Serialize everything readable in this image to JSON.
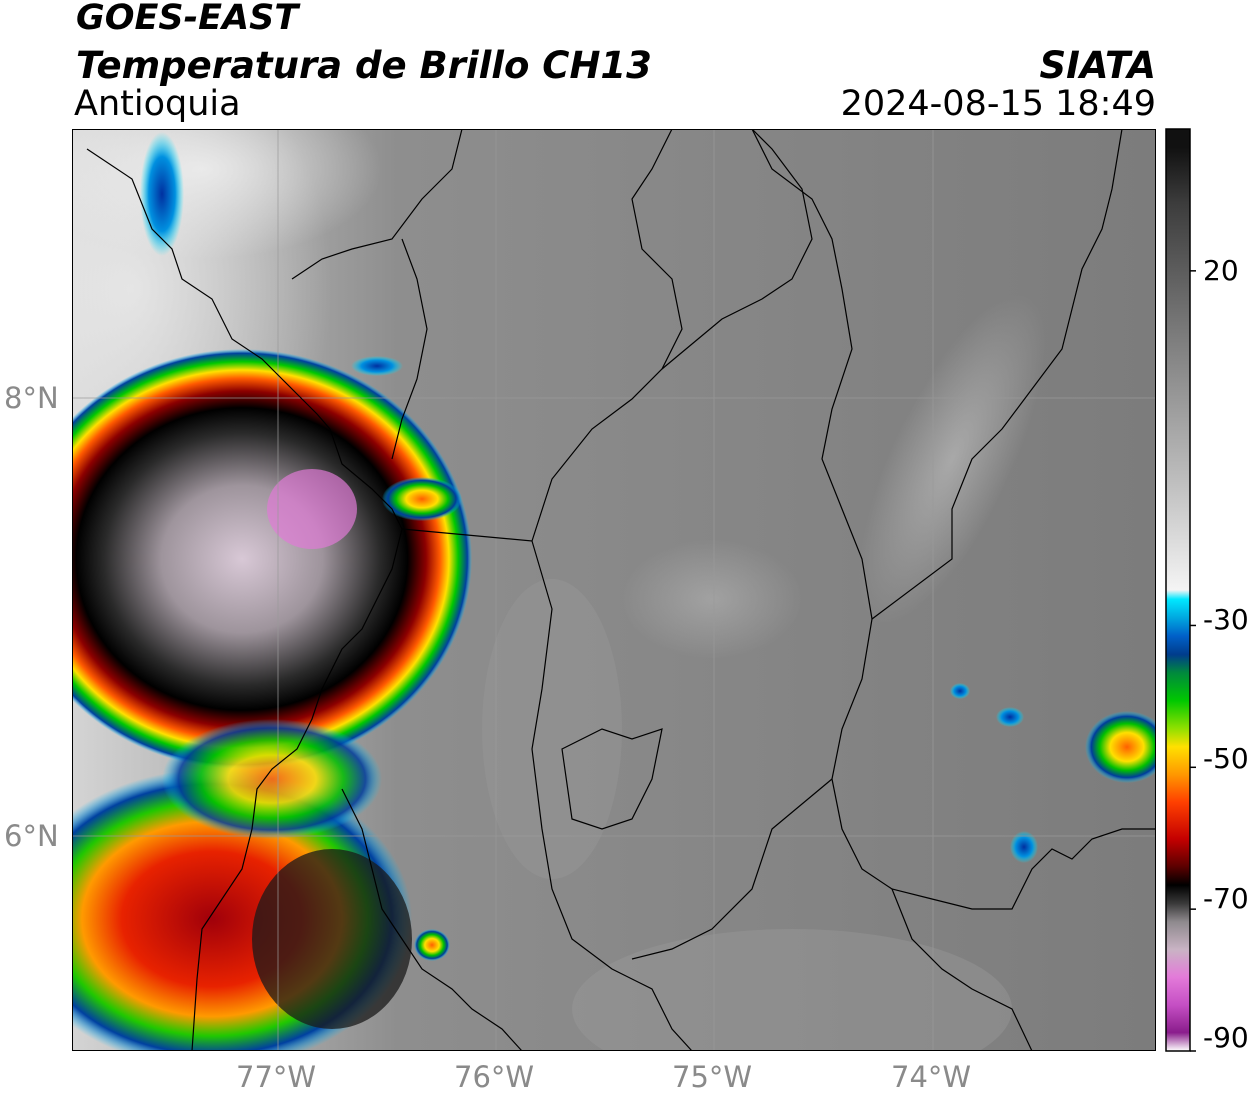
{
  "header": {
    "satellite": "GOES-EAST",
    "product": "Temperatura de Brillo CH13",
    "region": "Antioquia",
    "brand": "SIATA",
    "datetime": "2024-08-15 18:49"
  },
  "axes": {
    "lat_labels": [
      "8°N",
      "6°N"
    ],
    "lon_labels": [
      "77°W",
      "76°W",
      "75°W",
      "74°W"
    ]
  },
  "colorbar": {
    "tick_labels": [
      "20",
      "-30",
      "-50",
      "-70",
      "-90"
    ],
    "range": [
      -90,
      40
    ],
    "palette": [
      "#ffffff",
      "#8a1d8c",
      "#c54fc4",
      "#e37ad9",
      "#c9b3c4",
      "#8f8a8e",
      "#3a3a3a",
      "#000000",
      "#5c0000",
      "#c40000",
      "#ff4000",
      "#ff9800",
      "#ffe000",
      "#8fe000",
      "#00c800",
      "#008a3c",
      "#003c8c",
      "#0060c8",
      "#00a8e0",
      "#00e8ff",
      "#f4f4f4",
      "#bdbdbd",
      "#7a7a7a",
      "#3c3c3c",
      "#111111"
    ]
  },
  "colors": {
    "frame": "#000000",
    "tick_text": "#8a8a8a",
    "land_gray": "#7e7e7e",
    "cloud_white": "#e8e8e8"
  }
}
